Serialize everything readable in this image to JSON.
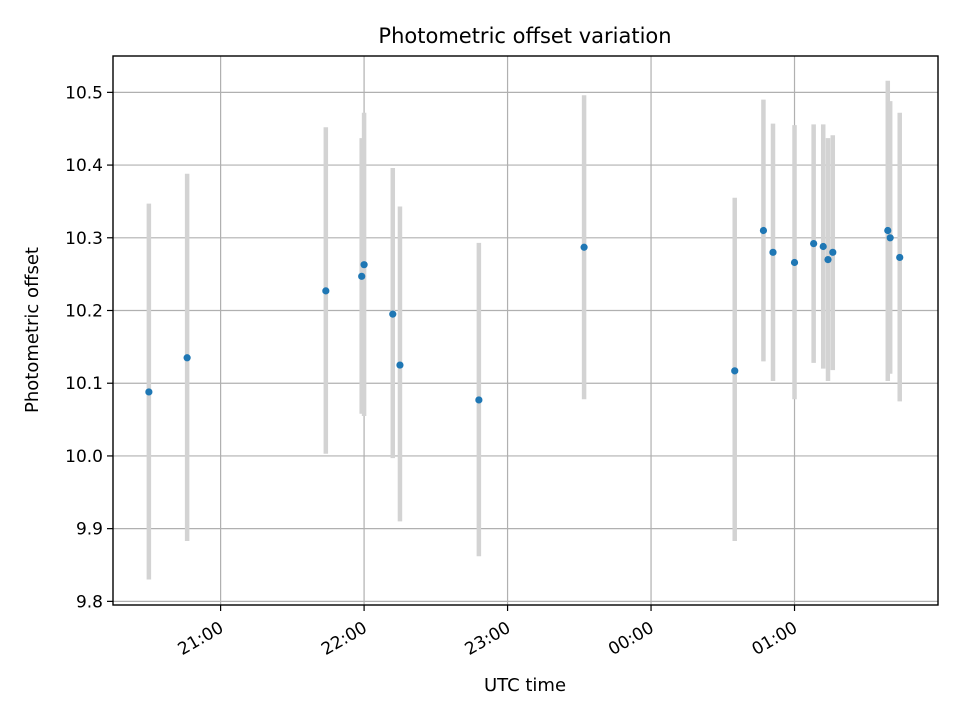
{
  "chart_data": {
    "type": "scatter",
    "title": "Photometric offset variation",
    "xlabel": "UTC time",
    "ylabel": "Photometric offset",
    "x_axis": {
      "kind": "time",
      "range": [
        "20:15",
        "02:00"
      ],
      "ticks": [
        "21:00",
        "22:00",
        "23:00",
        "00:00",
        "01:00"
      ]
    },
    "y_axis": {
      "range": [
        9.795,
        10.55
      ],
      "ticks": [
        "9.8",
        "9.9",
        "10.0",
        "10.1",
        "10.2",
        "10.3",
        "10.4",
        "10.5"
      ]
    },
    "grid": true,
    "colors": {
      "point": "#1f77b4",
      "error_bar": "#d3d3d3"
    },
    "points": [
      {
        "x": "20:30",
        "y": 10.088,
        "low": 9.83,
        "high": 10.347
      },
      {
        "x": "20:46",
        "y": 10.135,
        "low": 9.883,
        "high": 10.388
      },
      {
        "x": "21:44",
        "y": 10.227,
        "low": 10.003,
        "high": 10.452
      },
      {
        "x": "21:59",
        "y": 10.247,
        "low": 10.058,
        "high": 10.437
      },
      {
        "x": "22:00",
        "y": 10.263,
        "low": 10.055,
        "high": 10.472
      },
      {
        "x": "22:12",
        "y": 10.195,
        "low": 9.997,
        "high": 10.396
      },
      {
        "x": "22:15",
        "y": 10.125,
        "low": 9.91,
        "high": 10.343
      },
      {
        "x": "22:48",
        "y": 10.077,
        "low": 9.862,
        "high": 10.293
      },
      {
        "x": "23:32",
        "y": 10.287,
        "low": 10.078,
        "high": 10.496
      },
      {
        "x": "00:35",
        "y": 10.117,
        "low": 9.883,
        "high": 10.355
      },
      {
        "x": "00:47",
        "y": 10.31,
        "low": 10.13,
        "high": 10.49
      },
      {
        "x": "00:51",
        "y": 10.28,
        "low": 10.103,
        "high": 10.457
      },
      {
        "x": "01:00",
        "y": 10.266,
        "low": 10.078,
        "high": 10.455
      },
      {
        "x": "01:08",
        "y": 10.292,
        "low": 10.128,
        "high": 10.456
      },
      {
        "x": "01:12",
        "y": 10.288,
        "low": 10.12,
        "high": 10.456
      },
      {
        "x": "01:14",
        "y": 10.27,
        "low": 10.103,
        "high": 10.437
      },
      {
        "x": "01:16",
        "y": 10.28,
        "low": 10.118,
        "high": 10.441
      },
      {
        "x": "01:39",
        "y": 10.31,
        "low": 10.103,
        "high": 10.516
      },
      {
        "x": "01:40",
        "y": 10.3,
        "low": 10.113,
        "high": 10.488
      },
      {
        "x": "01:44",
        "y": 10.273,
        "low": 10.075,
        "high": 10.472
      }
    ]
  }
}
